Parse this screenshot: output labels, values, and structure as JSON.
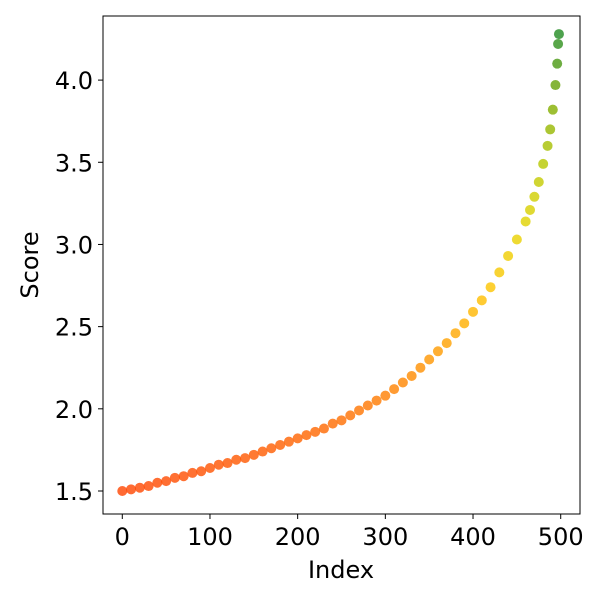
{
  "chart_data": {
    "type": "scatter",
    "xlabel": "Index",
    "ylabel": "Score",
    "xlim": [
      -22,
      522
    ],
    "ylim": [
      1.36,
      4.39
    ],
    "xticks": [
      0,
      100,
      200,
      300,
      400,
      500
    ],
    "yticks": [
      1.5,
      2.0,
      2.5,
      3.0,
      3.5,
      4.0
    ],
    "xtick_labels": [
      "0",
      "100",
      "200",
      "300",
      "400",
      "500"
    ],
    "ytick_labels": [
      "1.5",
      "2.0",
      "2.5",
      "3.0",
      "3.5",
      "4.0"
    ],
    "grid": false,
    "legend": "none",
    "marker_opacity": 0.8,
    "colormap": [
      "#ff4500",
      "#ff6a00",
      "#ff9500",
      "#ffc200",
      "#e6d400",
      "#b8c800",
      "#7aaa00",
      "#228b22"
    ],
    "series": [
      {
        "x": [
          0,
          10,
          20,
          30,
          40,
          50,
          60,
          70,
          80,
          90,
          100,
          110,
          120,
          130,
          140,
          150,
          160,
          170,
          180,
          190,
          200,
          210,
          220,
          230,
          240,
          250,
          260,
          270,
          280,
          290,
          300,
          310,
          320,
          330,
          340,
          350,
          360,
          370,
          380,
          390,
          400,
          410,
          420,
          430,
          440,
          450,
          460,
          465,
          470,
          475,
          480,
          485,
          488,
          491,
          494,
          496,
          497,
          498
        ],
        "y": [
          1.5,
          1.51,
          1.52,
          1.53,
          1.55,
          1.56,
          1.58,
          1.59,
          1.61,
          1.62,
          1.64,
          1.66,
          1.67,
          1.69,
          1.7,
          1.72,
          1.74,
          1.76,
          1.78,
          1.8,
          1.82,
          1.84,
          1.86,
          1.88,
          1.91,
          1.93,
          1.96,
          1.99,
          2.02,
          2.05,
          2.08,
          2.12,
          2.16,
          2.2,
          2.25,
          2.3,
          2.35,
          2.4,
          2.46,
          2.52,
          2.59,
          2.66,
          2.74,
          2.83,
          2.93,
          3.03,
          3.14,
          3.21,
          3.29,
          3.38,
          3.49,
          3.6,
          3.7,
          3.82,
          3.97,
          4.1,
          4.22,
          4.28
        ]
      }
    ]
  }
}
